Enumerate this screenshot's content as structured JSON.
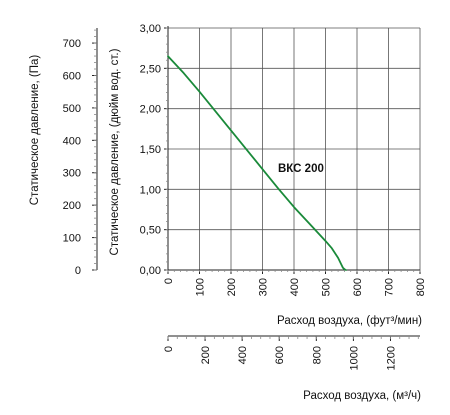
{
  "colors": {
    "curve": "#1a8a3a",
    "grid": "#555555",
    "axis": "#222222"
  },
  "chart_data": {
    "type": "line",
    "series": [
      {
        "name": "ВКС 200",
        "x": [
          0,
          50,
          100,
          150,
          200,
          250,
          300,
          350,
          400,
          450,
          500,
          520,
          540,
          550,
          555,
          560,
          565
        ],
        "values": [
          2.65,
          2.44,
          2.21,
          1.97,
          1.73,
          1.49,
          1.25,
          1.01,
          0.78,
          0.57,
          0.36,
          0.27,
          0.15,
          0.07,
          0.03,
          0.01,
          0.0
        ]
      }
    ],
    "series_label": "ВКС 200",
    "axes": {
      "y_right": {
        "label": "Статическое давление, (дюйм вод. ст.)",
        "lim": [
          0,
          3
        ],
        "ticks": [
          "0,00",
          "0,50",
          "1,00",
          "1,50",
          "2,00",
          "2,50",
          "3,00"
        ]
      },
      "y_left": {
        "label": "Статическое давление, (Па)",
        "lim": [
          0,
          746.5
        ],
        "ticks": [
          "0",
          "100",
          "200",
          "300",
          "400",
          "500",
          "600",
          "700"
        ]
      },
      "x_top": {
        "label": "Расход воздуха, (фут³/мин)",
        "lim": [
          0,
          800
        ],
        "ticks": [
          "0",
          "100",
          "200",
          "300",
          "400",
          "500",
          "600",
          "700",
          "800"
        ]
      },
      "x_bottom": {
        "label": "Расход воздуха, (м³/ч)",
        "lim": [
          0,
          1359.2
        ],
        "ticks": [
          "0",
          "200",
          "400",
          "600",
          "800",
          "1000",
          "1200"
        ]
      }
    },
    "grid": true
  }
}
